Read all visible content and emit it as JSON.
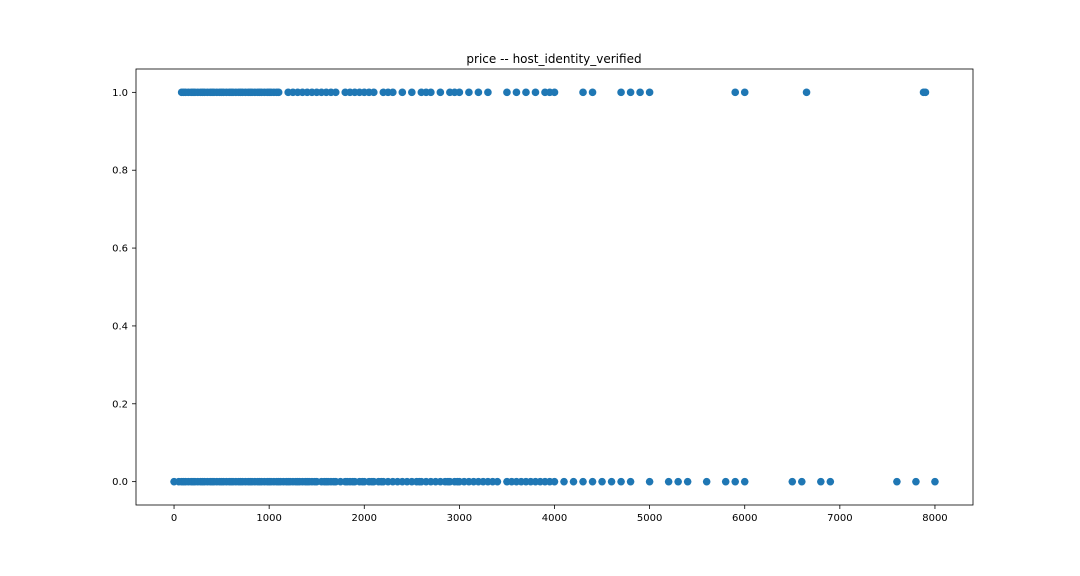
{
  "chart_data": {
    "type": "scatter",
    "title": "price -- host_identity_verified",
    "xlabel": "",
    "ylabel": "",
    "xlim": [
      -400,
      8400
    ],
    "ylim": [
      -0.06,
      1.06
    ],
    "xticks": [
      0,
      1000,
      2000,
      3000,
      4000,
      5000,
      6000,
      7000,
      8000
    ],
    "yticks": [
      0.0,
      0.2,
      0.4,
      0.6,
      0.8,
      1.0
    ],
    "xtick_labels": [
      "0",
      "1000",
      "2000",
      "3000",
      "4000",
      "5000",
      "6000",
      "7000",
      "8000"
    ],
    "ytick_labels": [
      "0.0",
      "0.2",
      "0.4",
      "0.6",
      "0.8",
      "1.0"
    ],
    "grid": false,
    "marker_color": "#1f77b4",
    "series": [
      {
        "points": [
          [
            0,
            0
          ],
          [
            50,
            0
          ],
          [
            80,
            0
          ],
          [
            100,
            0
          ],
          [
            120,
            0
          ],
          [
            150,
            0
          ],
          [
            180,
            0
          ],
          [
            200,
            0
          ],
          [
            220,
            0
          ],
          [
            250,
            0
          ],
          [
            280,
            0
          ],
          [
            300,
            0
          ],
          [
            320,
            0
          ],
          [
            350,
            0
          ],
          [
            380,
            0
          ],
          [
            400,
            0
          ],
          [
            420,
            0
          ],
          [
            450,
            0
          ],
          [
            480,
            0
          ],
          [
            500,
            0
          ],
          [
            520,
            0
          ],
          [
            550,
            0
          ],
          [
            580,
            0
          ],
          [
            600,
            0
          ],
          [
            620,
            0
          ],
          [
            650,
            0
          ],
          [
            680,
            0
          ],
          [
            700,
            0
          ],
          [
            720,
            0
          ],
          [
            750,
            0
          ],
          [
            780,
            0
          ],
          [
            800,
            0
          ],
          [
            820,
            0
          ],
          [
            850,
            0
          ],
          [
            880,
            0
          ],
          [
            900,
            0
          ],
          [
            920,
            0
          ],
          [
            950,
            0
          ],
          [
            980,
            0
          ],
          [
            1000,
            0
          ],
          [
            1020,
            0
          ],
          [
            1050,
            0
          ],
          [
            1080,
            0
          ],
          [
            1100,
            0
          ],
          [
            1120,
            0
          ],
          [
            1150,
            0
          ],
          [
            1180,
            0
          ],
          [
            1200,
            0
          ],
          [
            1220,
            0
          ],
          [
            1250,
            0
          ],
          [
            1280,
            0
          ],
          [
            1300,
            0
          ],
          [
            1320,
            0
          ],
          [
            1350,
            0
          ],
          [
            1380,
            0
          ],
          [
            1400,
            0
          ],
          [
            1420,
            0
          ],
          [
            1450,
            0
          ],
          [
            1480,
            0
          ],
          [
            1500,
            0
          ],
          [
            1550,
            0
          ],
          [
            1580,
            0
          ],
          [
            1600,
            0
          ],
          [
            1620,
            0
          ],
          [
            1650,
            0
          ],
          [
            1680,
            0
          ],
          [
            1700,
            0
          ],
          [
            1750,
            0
          ],
          [
            1800,
            0
          ],
          [
            1820,
            0
          ],
          [
            1850,
            0
          ],
          [
            1880,
            0
          ],
          [
            1900,
            0
          ],
          [
            1950,
            0
          ],
          [
            1980,
            0
          ],
          [
            2000,
            0
          ],
          [
            2050,
            0
          ],
          [
            2080,
            0
          ],
          [
            2100,
            0
          ],
          [
            2150,
            0
          ],
          [
            2180,
            0
          ],
          [
            2200,
            0
          ],
          [
            2250,
            0
          ],
          [
            2300,
            0
          ],
          [
            2350,
            0
          ],
          [
            2400,
            0
          ],
          [
            2450,
            0
          ],
          [
            2500,
            0
          ],
          [
            2550,
            0
          ],
          [
            2580,
            0
          ],
          [
            2600,
            0
          ],
          [
            2650,
            0
          ],
          [
            2700,
            0
          ],
          [
            2750,
            0
          ],
          [
            2800,
            0
          ],
          [
            2850,
            0
          ],
          [
            2880,
            0
          ],
          [
            2900,
            0
          ],
          [
            2950,
            0
          ],
          [
            2980,
            0
          ],
          [
            3000,
            0
          ],
          [
            3050,
            0
          ],
          [
            3100,
            0
          ],
          [
            3150,
            0
          ],
          [
            3200,
            0
          ],
          [
            3250,
            0
          ],
          [
            3300,
            0
          ],
          [
            3350,
            0
          ],
          [
            3400,
            0
          ],
          [
            3500,
            0
          ],
          [
            3550,
            0
          ],
          [
            3600,
            0
          ],
          [
            3650,
            0
          ],
          [
            3700,
            0
          ],
          [
            3750,
            0
          ],
          [
            3800,
            0
          ],
          [
            3850,
            0
          ],
          [
            3900,
            0
          ],
          [
            3950,
            0
          ],
          [
            4000,
            0
          ],
          [
            4100,
            0
          ],
          [
            4200,
            0
          ],
          [
            4300,
            0
          ],
          [
            4400,
            0
          ],
          [
            4500,
            0
          ],
          [
            4600,
            0
          ],
          [
            4700,
            0
          ],
          [
            4800,
            0
          ],
          [
            5000,
            0
          ],
          [
            5200,
            0
          ],
          [
            5300,
            0
          ],
          [
            5400,
            0
          ],
          [
            5600,
            0
          ],
          [
            5800,
            0
          ],
          [
            5900,
            0
          ],
          [
            6000,
            0
          ],
          [
            6500,
            0
          ],
          [
            6600,
            0
          ],
          [
            6800,
            0
          ],
          [
            6900,
            0
          ],
          [
            7600,
            0
          ],
          [
            7800,
            0
          ],
          [
            8000,
            0
          ],
          [
            80,
            1
          ],
          [
            100,
            1
          ],
          [
            120,
            1
          ],
          [
            150,
            1
          ],
          [
            180,
            1
          ],
          [
            200,
            1
          ],
          [
            220,
            1
          ],
          [
            250,
            1
          ],
          [
            280,
            1
          ],
          [
            300,
            1
          ],
          [
            320,
            1
          ],
          [
            350,
            1
          ],
          [
            380,
            1
          ],
          [
            400,
            1
          ],
          [
            420,
            1
          ],
          [
            450,
            1
          ],
          [
            480,
            1
          ],
          [
            500,
            1
          ],
          [
            520,
            1
          ],
          [
            550,
            1
          ],
          [
            580,
            1
          ],
          [
            600,
            1
          ],
          [
            620,
            1
          ],
          [
            650,
            1
          ],
          [
            680,
            1
          ],
          [
            700,
            1
          ],
          [
            720,
            1
          ],
          [
            750,
            1
          ],
          [
            780,
            1
          ],
          [
            800,
            1
          ],
          [
            820,
            1
          ],
          [
            850,
            1
          ],
          [
            880,
            1
          ],
          [
            900,
            1
          ],
          [
            920,
            1
          ],
          [
            950,
            1
          ],
          [
            980,
            1
          ],
          [
            1000,
            1
          ],
          [
            1020,
            1
          ],
          [
            1050,
            1
          ],
          [
            1080,
            1
          ],
          [
            1100,
            1
          ],
          [
            1200,
            1
          ],
          [
            1250,
            1
          ],
          [
            1300,
            1
          ],
          [
            1350,
            1
          ],
          [
            1400,
            1
          ],
          [
            1450,
            1
          ],
          [
            1500,
            1
          ],
          [
            1550,
            1
          ],
          [
            1600,
            1
          ],
          [
            1650,
            1
          ],
          [
            1700,
            1
          ],
          [
            1800,
            1
          ],
          [
            1850,
            1
          ],
          [
            1900,
            1
          ],
          [
            1950,
            1
          ],
          [
            2000,
            1
          ],
          [
            2050,
            1
          ],
          [
            2100,
            1
          ],
          [
            2200,
            1
          ],
          [
            2250,
            1
          ],
          [
            2300,
            1
          ],
          [
            2400,
            1
          ],
          [
            2500,
            1
          ],
          [
            2600,
            1
          ],
          [
            2650,
            1
          ],
          [
            2700,
            1
          ],
          [
            2800,
            1
          ],
          [
            2900,
            1
          ],
          [
            2950,
            1
          ],
          [
            3000,
            1
          ],
          [
            3100,
            1
          ],
          [
            3200,
            1
          ],
          [
            3300,
            1
          ],
          [
            3500,
            1
          ],
          [
            3600,
            1
          ],
          [
            3700,
            1
          ],
          [
            3800,
            1
          ],
          [
            3900,
            1
          ],
          [
            3950,
            1
          ],
          [
            4000,
            1
          ],
          [
            4300,
            1
          ],
          [
            4400,
            1
          ],
          [
            4700,
            1
          ],
          [
            4800,
            1
          ],
          [
            4900,
            1
          ],
          [
            5000,
            1
          ],
          [
            5900,
            1
          ],
          [
            6000,
            1
          ],
          [
            6650,
            1
          ],
          [
            7880,
            1
          ],
          [
            7900,
            1
          ]
        ]
      }
    ]
  }
}
